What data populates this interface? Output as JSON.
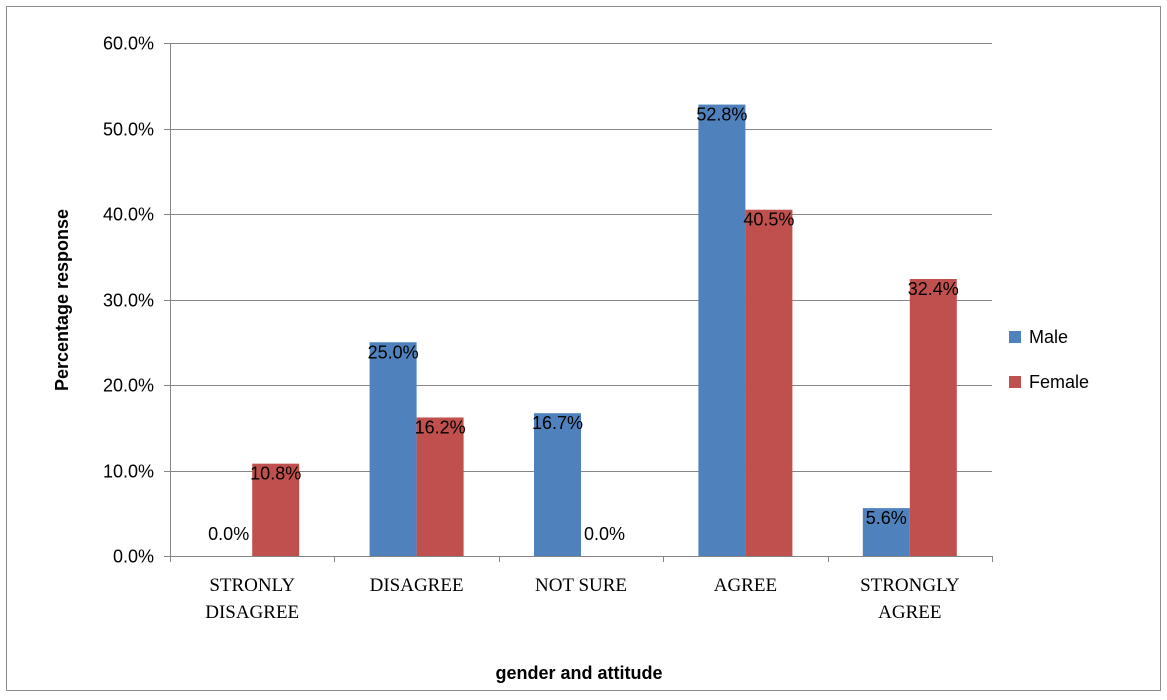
{
  "chart_data": {
    "type": "bar",
    "title": "",
    "xlabel": "gender and attitude",
    "ylabel": "Percentage response",
    "ylim": [
      0,
      60
    ],
    "ytick_step": 10,
    "ytick_format": "percent_1dp",
    "categories": [
      [
        "STRONLY",
        "DISAGREE"
      ],
      [
        "DISAGREE"
      ],
      [
        "NOT SURE"
      ],
      [
        "AGREE"
      ],
      [
        "STRONGLY",
        "AGREE"
      ]
    ],
    "series": [
      {
        "name": "Male",
        "color": "#4F81BD",
        "values": [
          0.0,
          25.0,
          16.7,
          52.8,
          5.6
        ],
        "labels": [
          "0.0%",
          "25.0%",
          "16.7%",
          "52.8%",
          "5.6%"
        ]
      },
      {
        "name": "Female",
        "color": "#C0504D",
        "values": [
          10.8,
          16.2,
          0.0,
          40.5,
          32.4
        ],
        "labels": [
          "10.8%",
          "16.2%",
          "0.0%",
          "40.5%",
          "32.4%"
        ]
      }
    ],
    "grid": true,
    "legend": "right"
  }
}
